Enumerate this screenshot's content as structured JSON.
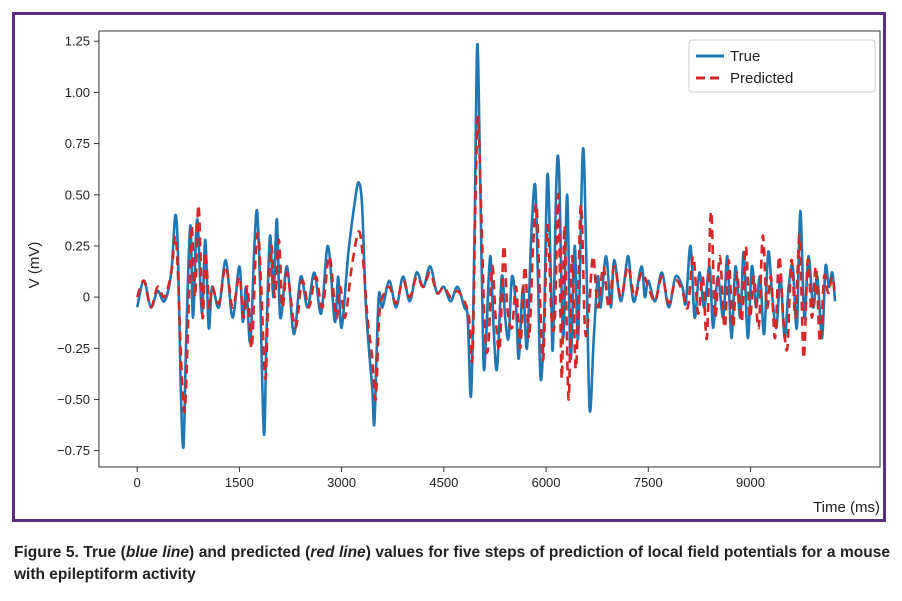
{
  "chart_data": {
    "type": "line",
    "xlabel": "Time (ms)",
    "ylabel": "V (mV)",
    "xlim": [
      -560,
      10900
    ],
    "ylim": [
      -0.83,
      1.3
    ],
    "x_ticks": [
      0,
      1500,
      3000,
      4500,
      6000,
      7500,
      9000
    ],
    "x_tick_labels": [
      "0",
      "1500",
      "3000",
      "4500",
      "6000",
      "7500",
      "9000"
    ],
    "y_ticks": [
      1.25,
      1.0,
      0.75,
      0.5,
      0.25,
      0,
      -0.25,
      -0.5,
      -0.75
    ],
    "y_tick_labels": [
      "1.25",
      "1.00",
      "0.75",
      "0.50",
      "0.25",
      "0",
      "−0.25",
      "−0.50",
      "−0.75"
    ],
    "legend_position": "top-right",
    "grid": false,
    "series": [
      {
        "name": "True",
        "color": "#1f77b4",
        "style": "solid",
        "points": [
          [
            0,
            -0.05
          ],
          [
            100,
            0.08
          ],
          [
            200,
            -0.05
          ],
          [
            300,
            0.03
          ],
          [
            400,
            -0.02
          ],
          [
            500,
            0.12
          ],
          [
            560,
            0.4
          ],
          [
            600,
            0.2
          ],
          [
            640,
            -0.45
          ],
          [
            680,
            -0.73
          ],
          [
            720,
            -0.2
          ],
          [
            780,
            0.35
          ],
          [
            820,
            -0.1
          ],
          [
            880,
            0.38
          ],
          [
            950,
            -0.08
          ],
          [
            1000,
            0.28
          ],
          [
            1050,
            -0.15
          ],
          [
            1100,
            0.05
          ],
          [
            1200,
            -0.05
          ],
          [
            1300,
            0.18
          ],
          [
            1400,
            -0.1
          ],
          [
            1500,
            0.15
          ],
          [
            1550,
            -0.12
          ],
          [
            1600,
            0.05
          ],
          [
            1660,
            -0.22
          ],
          [
            1720,
            0.25
          ],
          [
            1760,
            0.42
          ],
          [
            1800,
            0.1
          ],
          [
            1860,
            -0.67
          ],
          [
            1900,
            -0.15
          ],
          [
            1950,
            0.3
          ],
          [
            2000,
            0.0
          ],
          [
            2050,
            0.38
          ],
          [
            2100,
            -0.1
          ],
          [
            2200,
            0.15
          ],
          [
            2300,
            -0.18
          ],
          [
            2400,
            0.1
          ],
          [
            2500,
            -0.05
          ],
          [
            2600,
            0.12
          ],
          [
            2700,
            -0.08
          ],
          [
            2800,
            0.25
          ],
          [
            2900,
            -0.12
          ],
          [
            2950,
            0.1
          ],
          [
            3000,
            -0.15
          ],
          [
            3100,
            0.22
          ],
          [
            3200,
            0.48
          ],
          [
            3250,
            0.56
          ],
          [
            3300,
            0.45
          ],
          [
            3350,
            0.0
          ],
          [
            3400,
            -0.25
          ],
          [
            3450,
            -0.45
          ],
          [
            3480,
            -0.62
          ],
          [
            3520,
            -0.2
          ],
          [
            3550,
            0.02
          ],
          [
            3600,
            -0.05
          ],
          [
            3700,
            0.08
          ],
          [
            3800,
            -0.05
          ],
          [
            3900,
            0.1
          ],
          [
            4000,
            -0.02
          ],
          [
            4100,
            0.12
          ],
          [
            4200,
            0.05
          ],
          [
            4300,
            0.15
          ],
          [
            4400,
            0.02
          ],
          [
            4500,
            0.05
          ],
          [
            4600,
            -0.02
          ],
          [
            4700,
            0.05
          ],
          [
            4800,
            -0.05
          ],
          [
            4850,
            -0.1
          ],
          [
            4900,
            -0.48
          ],
          [
            4950,
            0.3
          ],
          [
            4990,
            1.23
          ],
          [
            5030,
            0.65
          ],
          [
            5080,
            -0.3
          ],
          [
            5120,
            -0.2
          ],
          [
            5180,
            0.2
          ],
          [
            5230,
            -0.15
          ],
          [
            5280,
            -0.35
          ],
          [
            5350,
            0.1
          ],
          [
            5400,
            -0.1
          ],
          [
            5450,
            -0.2
          ],
          [
            5500,
            0.1
          ],
          [
            5560,
            -0.05
          ],
          [
            5600,
            -0.3
          ],
          [
            5660,
            0.05
          ],
          [
            5720,
            -0.25
          ],
          [
            5780,
            0.28
          ],
          [
            5840,
            0.55
          ],
          [
            5880,
            0.1
          ],
          [
            5920,
            -0.4
          ],
          [
            5970,
            -0.12
          ],
          [
            6020,
            0.6
          ],
          [
            6070,
            0.1
          ],
          [
            6100,
            -0.25
          ],
          [
            6150,
            0.55
          ],
          [
            6190,
            0.62
          ],
          [
            6250,
            -0.2
          ],
          [
            6310,
            0.5
          ],
          [
            6360,
            -0.3
          ],
          [
            6420,
            0.25
          ],
          [
            6470,
            -0.2
          ],
          [
            6540,
            0.72
          ],
          [
            6590,
            0.2
          ],
          [
            6640,
            -0.55
          ],
          [
            6700,
            -0.2
          ],
          [
            6760,
            0.1
          ],
          [
            6800,
            -0.05
          ],
          [
            6880,
            0.2
          ],
          [
            6950,
            -0.05
          ],
          [
            7000,
            0.18
          ],
          [
            7100,
            -0.02
          ],
          [
            7200,
            0.2
          ],
          [
            7250,
            0.05
          ],
          [
            7300,
            -0.02
          ],
          [
            7400,
            0.15
          ],
          [
            7450,
            0.0
          ],
          [
            7500,
            0.08
          ],
          [
            7600,
            -0.02
          ],
          [
            7700,
            0.12
          ],
          [
            7800,
            -0.05
          ],
          [
            7900,
            0.1
          ],
          [
            8000,
            0.05
          ],
          [
            8050,
            -0.03
          ],
          [
            8120,
            0.25
          ],
          [
            8180,
            -0.1
          ],
          [
            8250,
            0.12
          ],
          [
            8320,
            -0.05
          ],
          [
            8400,
            0.15
          ],
          [
            8450,
            -0.15
          ],
          [
            8520,
            0.1
          ],
          [
            8600,
            -0.1
          ],
          [
            8660,
            0.2
          ],
          [
            8720,
            -0.2
          ],
          [
            8780,
            0.15
          ],
          [
            8850,
            -0.1
          ],
          [
            8900,
            0.22
          ],
          [
            8960,
            -0.2
          ],
          [
            9020,
            0.15
          ],
          [
            9080,
            -0.05
          ],
          [
            9140,
            0.1
          ],
          [
            9200,
            -0.18
          ],
          [
            9260,
            0.22
          ],
          [
            9320,
            0.0
          ],
          [
            9380,
            -0.15
          ],
          [
            9440,
            0.1
          ],
          [
            9500,
            -0.2
          ],
          [
            9560,
            0.05
          ],
          [
            9620,
            0.15
          ],
          [
            9680,
            -0.15
          ],
          [
            9730,
            0.42
          ],
          [
            9790,
            -0.1
          ],
          [
            9850,
            0.2
          ],
          [
            9920,
            -0.05
          ],
          [
            9980,
            0.1
          ],
          [
            10050,
            -0.2
          ],
          [
            10100,
            0.15
          ],
          [
            10150,
            0.05
          ],
          [
            10200,
            0.12
          ],
          [
            10240,
            -0.02
          ]
        ]
      },
      {
        "name": "Predicted",
        "color": "#d62728",
        "style": "dashed",
        "points": [
          [
            0,
            0.0
          ],
          [
            100,
            0.08
          ],
          [
            200,
            -0.05
          ],
          [
            300,
            0.05
          ],
          [
            400,
            0.0
          ],
          [
            500,
            0.12
          ],
          [
            560,
            0.3
          ],
          [
            600,
            0.1
          ],
          [
            650,
            -0.35
          ],
          [
            700,
            -0.55
          ],
          [
            760,
            0.0
          ],
          [
            800,
            0.35
          ],
          [
            850,
            0.0
          ],
          [
            900,
            0.45
          ],
          [
            960,
            -0.1
          ],
          [
            1000,
            0.22
          ],
          [
            1060,
            -0.05
          ],
          [
            1100,
            0.05
          ],
          [
            1200,
            -0.03
          ],
          [
            1300,
            0.15
          ],
          [
            1400,
            -0.05
          ],
          [
            1500,
            0.1
          ],
          [
            1560,
            -0.1
          ],
          [
            1620,
            0.05
          ],
          [
            1680,
            -0.25
          ],
          [
            1740,
            0.22
          ],
          [
            1780,
            0.3
          ],
          [
            1820,
            0.05
          ],
          [
            1880,
            -0.4
          ],
          [
            1920,
            -0.05
          ],
          [
            1970,
            0.25
          ],
          [
            2020,
            0.0
          ],
          [
            2080,
            0.28
          ],
          [
            2130,
            -0.05
          ],
          [
            2200,
            0.12
          ],
          [
            2320,
            -0.15
          ],
          [
            2420,
            0.08
          ],
          [
            2520,
            -0.05
          ],
          [
            2620,
            0.1
          ],
          [
            2720,
            -0.05
          ],
          [
            2820,
            0.2
          ],
          [
            2920,
            -0.1
          ],
          [
            2980,
            0.05
          ],
          [
            3050,
            -0.1
          ],
          [
            3150,
            0.15
          ],
          [
            3250,
            0.32
          ],
          [
            3310,
            0.2
          ],
          [
            3380,
            -0.1
          ],
          [
            3450,
            -0.3
          ],
          [
            3500,
            -0.5
          ],
          [
            3550,
            -0.1
          ],
          [
            3600,
            0.0
          ],
          [
            3700,
            0.05
          ],
          [
            3800,
            -0.03
          ],
          [
            3900,
            0.08
          ],
          [
            4000,
            0.0
          ],
          [
            4100,
            0.1
          ],
          [
            4200,
            0.05
          ],
          [
            4300,
            0.12
          ],
          [
            4400,
            0.02
          ],
          [
            4500,
            0.05
          ],
          [
            4600,
            0.0
          ],
          [
            4700,
            0.03
          ],
          [
            4800,
            -0.02
          ],
          [
            4870,
            -0.1
          ],
          [
            4920,
            -0.3
          ],
          [
            4960,
            0.4
          ],
          [
            5000,
            0.88
          ],
          [
            5050,
            0.4
          ],
          [
            5100,
            -0.15
          ],
          [
            5150,
            -0.25
          ],
          [
            5210,
            0.15
          ],
          [
            5260,
            -0.1
          ],
          [
            5320,
            -0.25
          ],
          [
            5380,
            0.25
          ],
          [
            5430,
            -0.05
          ],
          [
            5500,
            -0.15
          ],
          [
            5560,
            0.05
          ],
          [
            5620,
            -0.25
          ],
          [
            5690,
            0.15
          ],
          [
            5750,
            -0.2
          ],
          [
            5810,
            0.25
          ],
          [
            5860,
            0.45
          ],
          [
            5910,
            0.0
          ],
          [
            5960,
            -0.3
          ],
          [
            6020,
            0.35
          ],
          [
            6080,
            -0.1
          ],
          [
            6130,
            -0.1
          ],
          [
            6180,
            0.5
          ],
          [
            6230,
            -0.4
          ],
          [
            6270,
            0.35
          ],
          [
            6330,
            -0.5
          ],
          [
            6380,
            0.2
          ],
          [
            6440,
            -0.35
          ],
          [
            6510,
            0.45
          ],
          [
            6570,
            -0.15
          ],
          [
            6620,
            -0.1
          ],
          [
            6690,
            0.2
          ],
          [
            6760,
            -0.05
          ],
          [
            6840,
            0.15
          ],
          [
            6920,
            -0.05
          ],
          [
            7000,
            0.15
          ],
          [
            7100,
            0.0
          ],
          [
            7200,
            0.15
          ],
          [
            7300,
            0.0
          ],
          [
            7400,
            0.12
          ],
          [
            7500,
            0.05
          ],
          [
            7600,
            -0.02
          ],
          [
            7700,
            0.1
          ],
          [
            7800,
            -0.03
          ],
          [
            7900,
            0.08
          ],
          [
            8000,
            0.03
          ],
          [
            8080,
            -0.05
          ],
          [
            8160,
            0.2
          ],
          [
            8230,
            -0.08
          ],
          [
            8300,
            0.1
          ],
          [
            8360,
            -0.2
          ],
          [
            8420,
            0.42
          ],
          [
            8480,
            -0.1
          ],
          [
            8550,
            0.2
          ],
          [
            8620,
            -0.15
          ],
          [
            8680,
            0.18
          ],
          [
            8740,
            -0.15
          ],
          [
            8800,
            0.12
          ],
          [
            8870,
            -0.12
          ],
          [
            8930,
            0.25
          ],
          [
            8990,
            -0.1
          ],
          [
            9050,
            0.1
          ],
          [
            9120,
            -0.15
          ],
          [
            9180,
            0.3
          ],
          [
            9240,
            -0.05
          ],
          [
            9300,
            0.1
          ],
          [
            9360,
            -0.2
          ],
          [
            9420,
            0.2
          ],
          [
            9480,
            -0.1
          ],
          [
            9540,
            -0.25
          ],
          [
            9600,
            0.18
          ],
          [
            9660,
            -0.1
          ],
          [
            9720,
            0.3
          ],
          [
            9780,
            -0.3
          ],
          [
            9840,
            0.18
          ],
          [
            9900,
            -0.1
          ],
          [
            9960,
            0.15
          ],
          [
            10020,
            -0.22
          ],
          [
            10080,
            0.1
          ],
          [
            10140,
            0.02
          ],
          [
            10200,
            0.1
          ],
          [
            10240,
            0.0
          ]
        ]
      }
    ]
  },
  "caption": {
    "prefix": "Figure 5. True (",
    "blue": "blue line",
    "mid": ") and predicted (",
    "red": "red line",
    "suffix": ") values for five steps of prediction of local field potentials for a mouse with epileptiform activity"
  }
}
